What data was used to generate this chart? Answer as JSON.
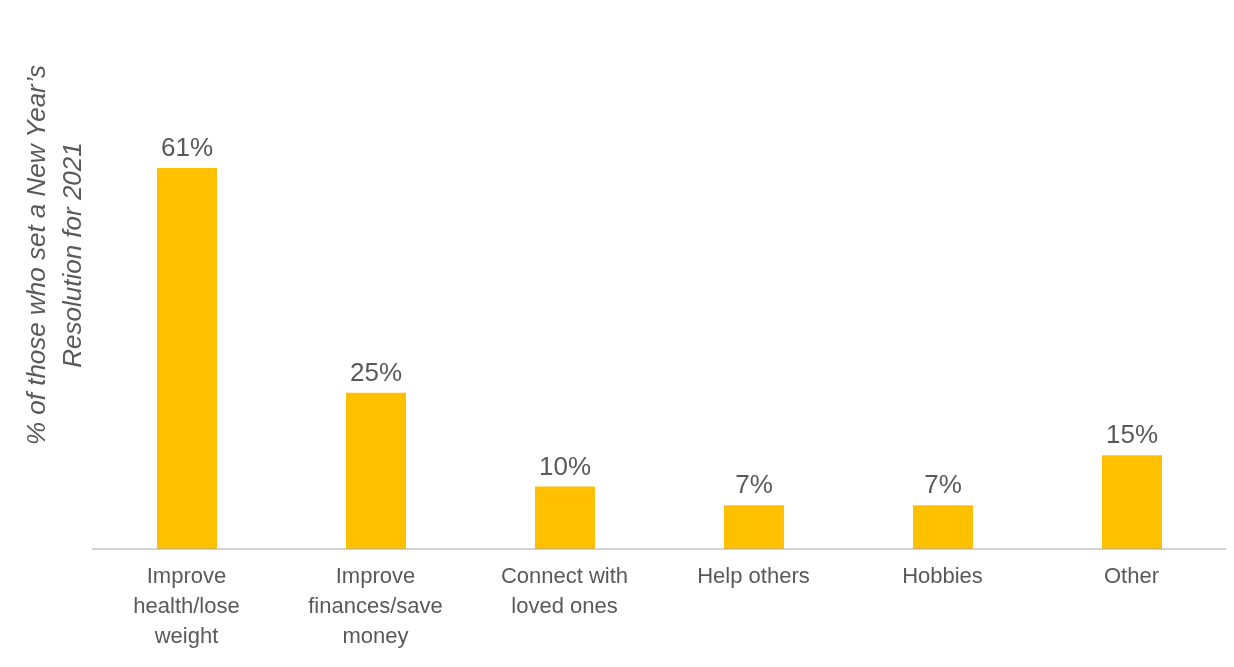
{
  "chart_data": {
    "type": "bar",
    "ylabel": "% of those who set a New Year’s Resolution for 2021",
    "categories": [
      "Improve health/lose weight",
      "Improve finances/save money",
      "Connect with loved ones",
      "Help others",
      "Hobbies",
      "Other"
    ],
    "values": [
      61,
      25,
      10,
      7,
      7,
      15
    ],
    "value_labels": [
      "61%",
      "25%",
      "10%",
      "7%",
      "7%",
      "15%"
    ],
    "color": "#ffc000"
  }
}
